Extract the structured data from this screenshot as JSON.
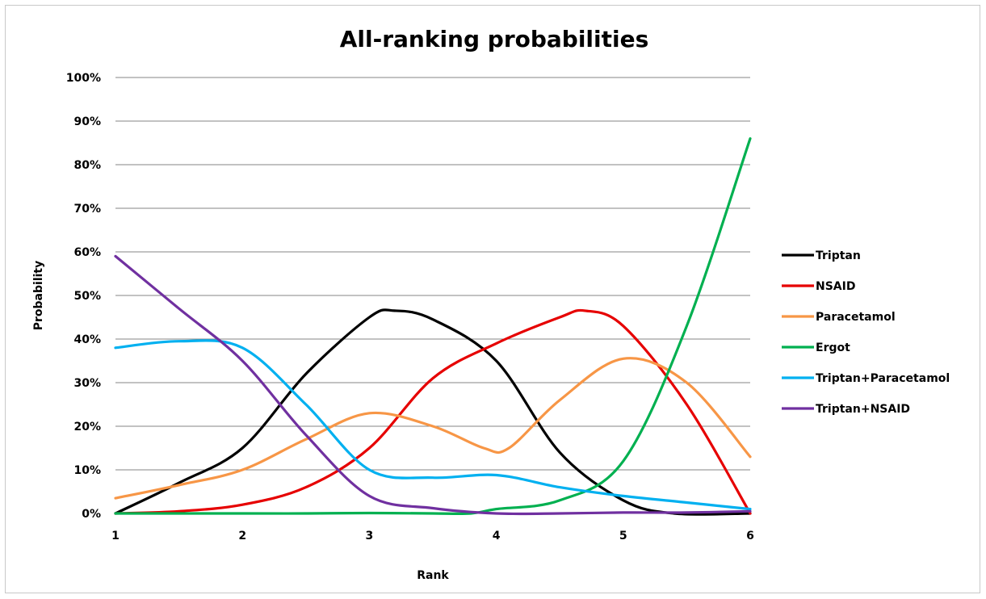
{
  "chart_data": {
    "type": "line",
    "title": "All-ranking probabilities",
    "xlabel": "Rank",
    "ylabel": "Probability",
    "x": [
      1,
      2,
      3,
      4,
      5,
      6
    ],
    "x_ticks": [
      "1",
      "2",
      "3",
      "4",
      "5",
      "6"
    ],
    "ylim": [
      0,
      100
    ],
    "y_ticks": [
      "0%",
      "10%",
      "20%",
      "30%",
      "40%",
      "50%",
      "60%",
      "70%",
      "80%",
      "90%",
      "100%"
    ],
    "grid": true,
    "legend_position": "right",
    "series": [
      {
        "name": "Triptan",
        "color": "#000000",
        "points": [
          [
            1,
            0
          ],
          [
            1.5,
            7
          ],
          [
            2,
            15
          ],
          [
            2.5,
            32
          ],
          [
            3,
            45
          ],
          [
            3.2,
            46.5
          ],
          [
            3.5,
            44.5
          ],
          [
            4,
            35
          ],
          [
            4.5,
            14
          ],
          [
            5,
            3
          ],
          [
            5.4,
            0
          ],
          [
            6,
            0
          ]
        ]
      },
      {
        "name": "NSAID",
        "color": "#e60000",
        "points": [
          [
            1,
            0
          ],
          [
            1.5,
            0.5
          ],
          [
            2,
            2
          ],
          [
            2.5,
            6
          ],
          [
            3,
            15
          ],
          [
            3.5,
            31
          ],
          [
            4,
            39
          ],
          [
            4.5,
            45
          ],
          [
            4.7,
            46.5
          ],
          [
            5,
            43
          ],
          [
            5.5,
            25
          ],
          [
            6,
            0
          ]
        ]
      },
      {
        "name": "Paracetamol",
        "color": "#f79646",
        "points": [
          [
            1,
            3.5
          ],
          [
            1.5,
            6.5
          ],
          [
            2,
            10
          ],
          [
            2.5,
            17
          ],
          [
            3,
            23
          ],
          [
            3.5,
            20
          ],
          [
            3.9,
            15
          ],
          [
            4.1,
            15
          ],
          [
            4.5,
            26
          ],
          [
            5,
            35.5
          ],
          [
            5.5,
            30
          ],
          [
            6,
            13
          ]
        ]
      },
      {
        "name": "Ergot",
        "color": "#00b050",
        "points": [
          [
            1,
            0
          ],
          [
            2,
            0
          ],
          [
            2.5,
            0
          ],
          [
            3,
            0.1
          ],
          [
            3.5,
            0
          ],
          [
            3.8,
            0
          ],
          [
            4,
            1
          ],
          [
            4.5,
            3
          ],
          [
            5,
            12
          ],
          [
            5.5,
            43
          ],
          [
            6,
            86
          ]
        ]
      },
      {
        "name": "Triptan+Paracetamol",
        "color": "#00b0f0",
        "points": [
          [
            1,
            38
          ],
          [
            1.5,
            39.5
          ],
          [
            2,
            38
          ],
          [
            2.5,
            25
          ],
          [
            3,
            10
          ],
          [
            3.5,
            8.2
          ],
          [
            4,
            8.8
          ],
          [
            4.5,
            6
          ],
          [
            5,
            4
          ],
          [
            5.5,
            2.5
          ],
          [
            6,
            1
          ]
        ]
      },
      {
        "name": "Triptan+NSAID",
        "color": "#7030a0",
        "points": [
          [
            1,
            59
          ],
          [
            1.5,
            47
          ],
          [
            2,
            35
          ],
          [
            2.5,
            18
          ],
          [
            3,
            4
          ],
          [
            3.5,
            1.2
          ],
          [
            4,
            0
          ],
          [
            4.5,
            0
          ],
          [
            5,
            0.2
          ],
          [
            5.5,
            0.2
          ],
          [
            6,
            0.5
          ]
        ]
      }
    ]
  }
}
